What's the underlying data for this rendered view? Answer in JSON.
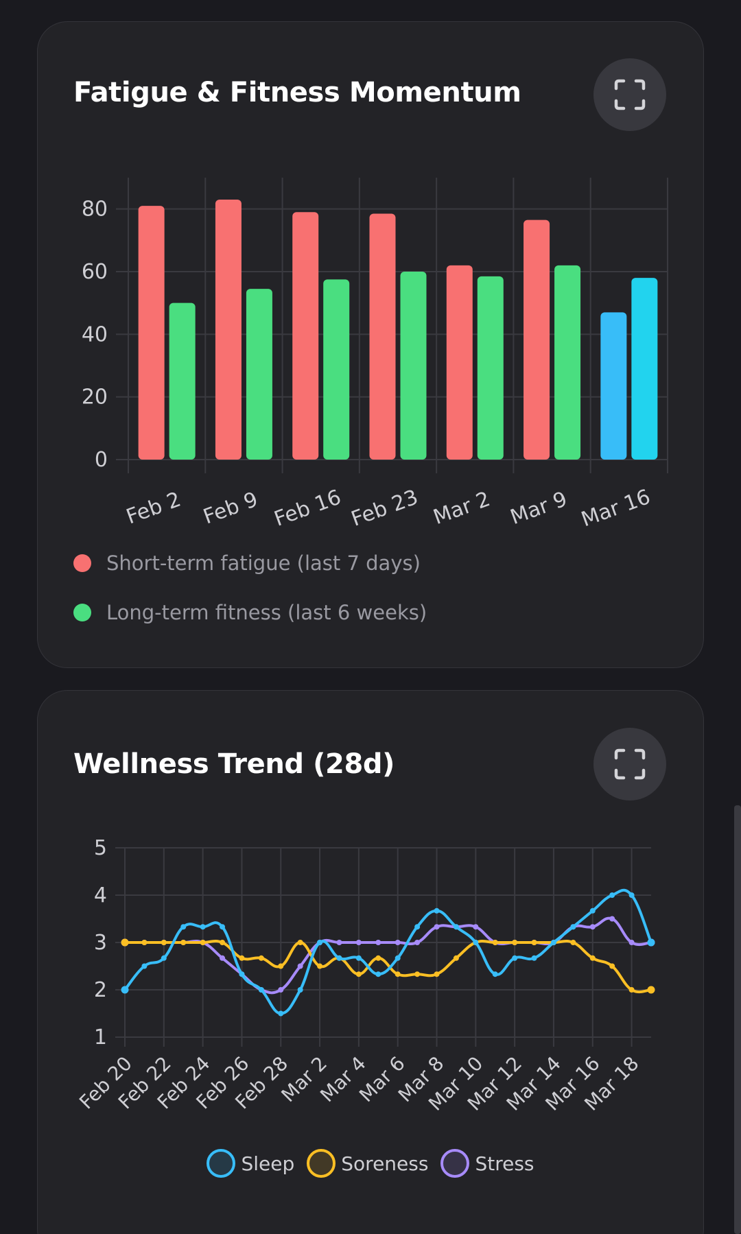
{
  "colors": {
    "fatigue": "#f87171",
    "fitness": "#4ade80",
    "fatigue_current": "#38bdf8",
    "fitness_current": "#22d3ee",
    "sleep": "#38bdf8",
    "soreness": "#fbbf24",
    "stress": "#a78bfa",
    "grid": "#3a3a40"
  },
  "icons": {
    "expand": "expand-icon"
  },
  "fatigue_card": {
    "title": "Fatigue & Fitness Momentum",
    "legend": [
      {
        "label": "Short-term fatigue (last 7 days)",
        "color": "#f87171"
      },
      {
        "label": "Long-term fitness (last 6 weeks)",
        "color": "#4ade80"
      }
    ]
  },
  "wellness_card": {
    "title": "Wellness Trend (28d)",
    "legend": [
      {
        "label": "Sleep",
        "color": "#38bdf8"
      },
      {
        "label": "Soreness",
        "color": "#fbbf24"
      },
      {
        "label": "Stress",
        "color": "#a78bfa"
      }
    ]
  },
  "chart_data": [
    {
      "type": "bar",
      "title": "Fatigue & Fitness Momentum",
      "categories": [
        "Feb 2",
        "Feb 9",
        "Feb 16",
        "Feb 23",
        "Mar 2",
        "Mar 9",
        "Mar 16"
      ],
      "series": [
        {
          "name": "Short-term fatigue (last 7 days)",
          "values": [
            81,
            83,
            79,
            78.5,
            62,
            76.5,
            47
          ]
        },
        {
          "name": "Long-term fitness (last 6 weeks)",
          "values": [
            50,
            54.5,
            57.5,
            60,
            58.5,
            62,
            58
          ]
        }
      ],
      "highlight_last_category": true,
      "yticks": [
        0,
        20,
        40,
        60,
        80
      ],
      "ylim": [
        0,
        90
      ],
      "xlabel": "",
      "ylabel": "",
      "grid": true,
      "legend_position": "bottom"
    },
    {
      "type": "line",
      "title": "Wellness Trend (28d)",
      "x": [
        "Feb 20",
        "Feb 21",
        "Feb 22",
        "Feb 23",
        "Feb 24",
        "Feb 25",
        "Feb 26",
        "Feb 27",
        "Feb 28",
        "Mar 1",
        "Mar 2",
        "Mar 3",
        "Mar 4",
        "Mar 5",
        "Mar 6",
        "Mar 7",
        "Mar 8",
        "Mar 9",
        "Mar 10",
        "Mar 11",
        "Mar 12",
        "Mar 13",
        "Mar 14",
        "Mar 15",
        "Mar 16",
        "Mar 17",
        "Mar 18",
        "Mar 19"
      ],
      "xticks": [
        "Feb 20",
        "Feb 22",
        "Feb 24",
        "Feb 26",
        "Feb 28",
        "Mar 2",
        "Mar 4",
        "Mar 6",
        "Mar 8",
        "Mar 10",
        "Mar 12",
        "Mar 14",
        "Mar 16",
        "Mar 18"
      ],
      "series": [
        {
          "name": "Sleep",
          "values": [
            2,
            2.5,
            2.67,
            3.33,
            3.33,
            3.33,
            2.33,
            2,
            1.5,
            2,
            3,
            2.67,
            2.67,
            2.33,
            2.67,
            3.33,
            3.67,
            3.33,
            3,
            2.33,
            2.67,
            2.67,
            3,
            3.33,
            3.67,
            4,
            4,
            3
          ]
        },
        {
          "name": "Soreness",
          "values": [
            3,
            3,
            3,
            3,
            3,
            3,
            2.67,
            2.67,
            2.5,
            3,
            2.5,
            2.67,
            2.33,
            2.67,
            2.33,
            2.33,
            2.33,
            2.67,
            3,
            3,
            3,
            3,
            3,
            3,
            2.67,
            2.5,
            2,
            2
          ]
        },
        {
          "name": "Stress",
          "values": [
            3,
            3,
            3,
            3,
            3,
            2.67,
            2.33,
            2,
            2,
            2.5,
            3,
            3,
            3,
            3,
            3,
            3,
            3.33,
            3.33,
            3.33,
            3,
            3,
            3,
            3,
            3.33,
            3.33,
            3.5,
            3,
            3
          ]
        }
      ],
      "yticks": [
        1,
        2,
        3,
        4,
        5
      ],
      "ylim": [
        1,
        5
      ],
      "xlabel": "",
      "ylabel": "",
      "grid": true,
      "legend_position": "bottom"
    }
  ]
}
